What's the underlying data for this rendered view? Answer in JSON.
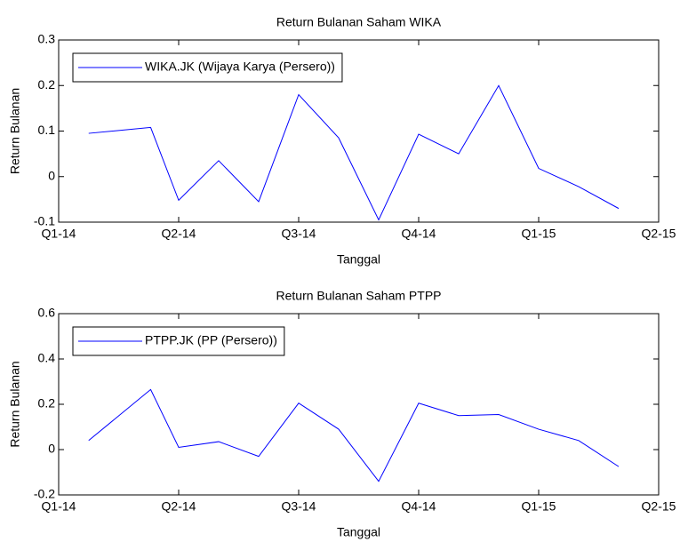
{
  "chart_data": [
    {
      "type": "line",
      "title": "Return Bulanan Saham WIKA",
      "xlabel": "Tanggal",
      "ylabel": "Return Bulanan",
      "x": [
        0.75,
        2.3,
        3,
        4,
        5,
        6,
        7,
        8,
        9,
        10,
        11,
        12,
        13,
        14
      ],
      "series": [
        {
          "name": "WIKA.JK (Wijaya Karya (Persero))",
          "color": "#0000ff",
          "values": [
            0.095,
            0.108,
            -0.052,
            0.035,
            -0.055,
            0.18,
            0.085,
            -0.095,
            0.093,
            0.05,
            0.2,
            0.018,
            -0.022,
            -0.07
          ]
        }
      ],
      "xlim": [
        0,
        15
      ],
      "ylim": [
        -0.1,
        0.3
      ],
      "xticks": [
        {
          "value": 0,
          "label": "Q1-14"
        },
        {
          "value": 3,
          "label": "Q2-14"
        },
        {
          "value": 6,
          "label": "Q3-14"
        },
        {
          "value": 9,
          "label": "Q4-14"
        },
        {
          "value": 12,
          "label": "Q1-15"
        },
        {
          "value": 15,
          "label": "Q2-15"
        }
      ],
      "yticks": [
        -0.1,
        0,
        0.1,
        0.2,
        0.3
      ],
      "legend": "upper left"
    },
    {
      "type": "line",
      "title": "Return Bulanan Saham PTPP",
      "xlabel": "Tanggal",
      "ylabel": "Return Bulanan",
      "x": [
        0.75,
        2.3,
        3,
        4,
        5,
        6,
        7,
        8,
        9,
        10,
        11,
        12,
        13,
        14
      ],
      "series": [
        {
          "name": "PTPP.JK (PP (Persero))",
          "color": "#0000ff",
          "values": [
            0.04,
            0.265,
            0.01,
            0.035,
            -0.03,
            0.205,
            0.09,
            -0.14,
            0.205,
            0.15,
            0.155,
            0.09,
            0.04,
            -0.075
          ]
        }
      ],
      "xlim": [
        0,
        15
      ],
      "ylim": [
        -0.2,
        0.6
      ],
      "xticks": [
        {
          "value": 0,
          "label": "Q1-14"
        },
        {
          "value": 3,
          "label": "Q2-14"
        },
        {
          "value": 6,
          "label": "Q3-14"
        },
        {
          "value": 9,
          "label": "Q4-14"
        },
        {
          "value": 12,
          "label": "Q1-15"
        },
        {
          "value": 15,
          "label": "Q2-15"
        }
      ],
      "yticks": [
        -0.2,
        0,
        0.2,
        0.4,
        0.6
      ],
      "legend": "upper left"
    }
  ]
}
